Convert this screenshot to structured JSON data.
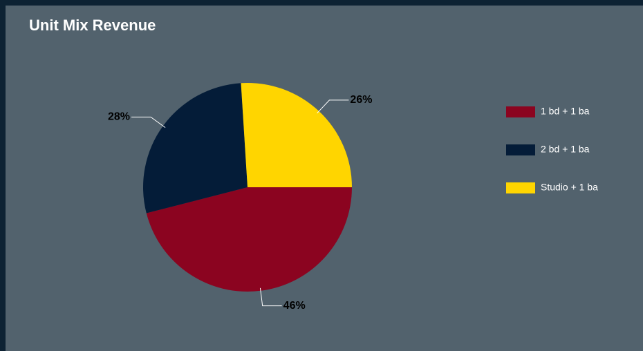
{
  "chart_data": {
    "type": "pie",
    "title": "Unit Mix Revenue",
    "categories": [
      "1  bd + 1 ba",
      "2  bd + 1 ba",
      "Studio + 1 ba"
    ],
    "values": [
      46,
      28,
      26
    ],
    "value_labels": [
      "46%",
      "28%",
      "26%"
    ],
    "colors": [
      "#8b0420",
      "#041c38",
      "#ffd500"
    ],
    "legend": "right"
  }
}
